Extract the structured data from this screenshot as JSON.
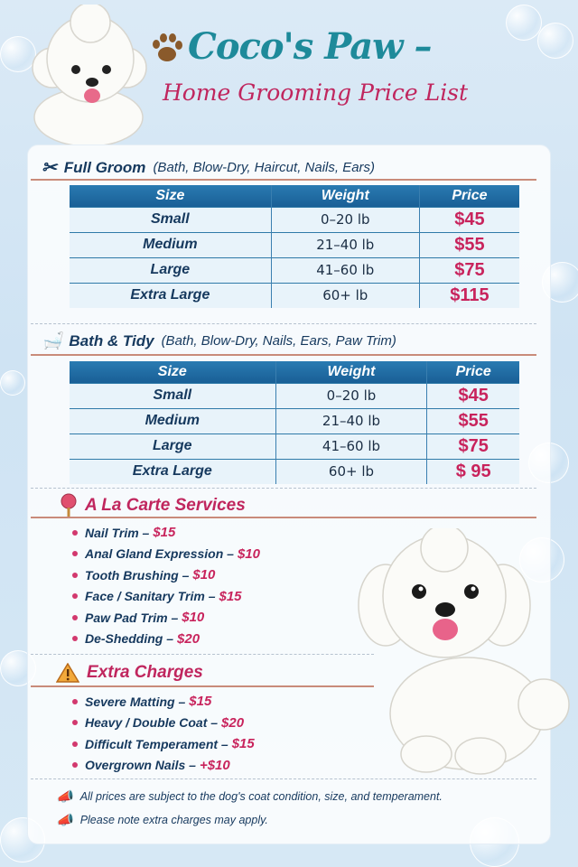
{
  "header": {
    "title": "Coco's Paw –",
    "subtitle": "Home Grooming Price List"
  },
  "colors": {
    "title": "#1e8a9a",
    "accent": "#c0265e",
    "price": "#c8235c",
    "table_header": "#1f6da4",
    "text": "#16395e"
  },
  "full_groom": {
    "icon": "scissors-icon",
    "title": "Full Groom",
    "details": "(Bath, Blow-Dry, Haircut, Nails, Ears)",
    "columns": [
      "Size",
      "Weight",
      "Price"
    ],
    "rows": [
      [
        "Small",
        "0–20 lb",
        "$45"
      ],
      [
        "Medium",
        "21–40 lb",
        "$55"
      ],
      [
        "Large",
        "41–60 lb",
        "$75"
      ],
      [
        "Extra Large",
        "60+ lb",
        "$115"
      ]
    ]
  },
  "bath_tidy": {
    "icon": "bathtub-icon",
    "title": "Bath & Tidy",
    "details": "(Bath, Blow-Dry, Nails, Ears, Paw Trim)",
    "columns": [
      "Size",
      "Weight",
      "Price"
    ],
    "rows": [
      [
        "Small",
        "0–20 lb",
        "$45"
      ],
      [
        "Medium",
        "21–40 lb",
        "$55"
      ],
      [
        "Large",
        "41–60 lb",
        "$75"
      ],
      [
        "Extra Large",
        "60+ lb",
        "$ 95"
      ]
    ]
  },
  "a_la_carte": {
    "icon": "brush-icon",
    "title": "A La Carte Services",
    "items": [
      {
        "name": "Nail Trim –",
        "price": "$15"
      },
      {
        "name": "Anal Gland Expression –",
        "price": "$10"
      },
      {
        "name": "Tooth Brushing –",
        "price": "$10"
      },
      {
        "name": "Face / Sanitary Trim –",
        "price": "$15"
      },
      {
        "name": "Paw Pad Trim –",
        "price": "$10"
      },
      {
        "name": "De-Shedding –",
        "price": "$20"
      }
    ]
  },
  "extra_charges": {
    "icon": "warning-icon",
    "title": "Extra Charges",
    "items": [
      {
        "name": "Severe Matting –",
        "price": "$15"
      },
      {
        "name": "Heavy / Double Coat –",
        "price": "$20"
      },
      {
        "name": "Difficult Temperament –",
        "price": "$15"
      },
      {
        "name": "Overgrown Nails –",
        "price": "+$10"
      }
    ]
  },
  "notes": [
    "All prices are subject to the dog's coat condition, size, and temperament.",
    "Please note extra charges may apply."
  ]
}
